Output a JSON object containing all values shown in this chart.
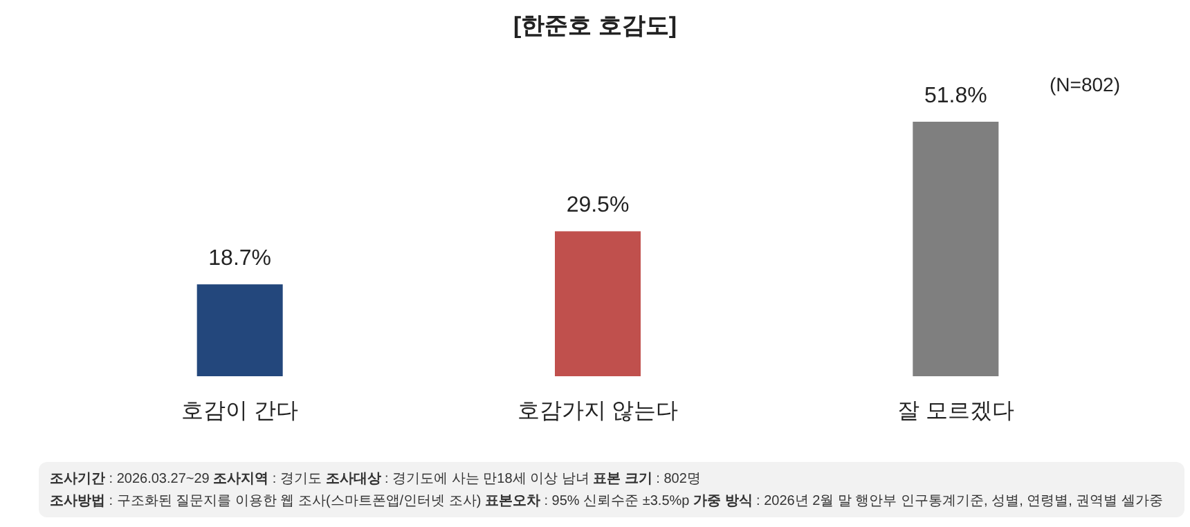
{
  "chart_data": {
    "type": "bar",
    "title": "[한준호 호감도]",
    "categories": [
      "호감이 간다",
      "호감가지 않는다",
      "잘 모르겠다"
    ],
    "values": [
      18.7,
      29.5,
      51.8
    ],
    "colors": [
      "#23477c",
      "#c0504d",
      "#7f7f7f"
    ],
    "value_labels": [
      "18.7%",
      "29.5%",
      "51.8%"
    ],
    "annotations": [
      "(N=802)",
      "**조사기간** : 2026.03.27~29   **조사지역** : 경기도   **조사대상** : 경기도에 사는 만18세 이상 남녀   **표본 크기** : 802명",
      "**조사방법** : 구조화된 질문지를 이용한 웹 조사(스마트폰앱/인터넷 조사)   **표본오차** : 95% 신뢰수준 ±3.5%p   **가중 방식** : 2026년 2월 말 행안부 인구통계기준, 성별, 연령별, 권역별 셀가중"
    ]
  }
}
